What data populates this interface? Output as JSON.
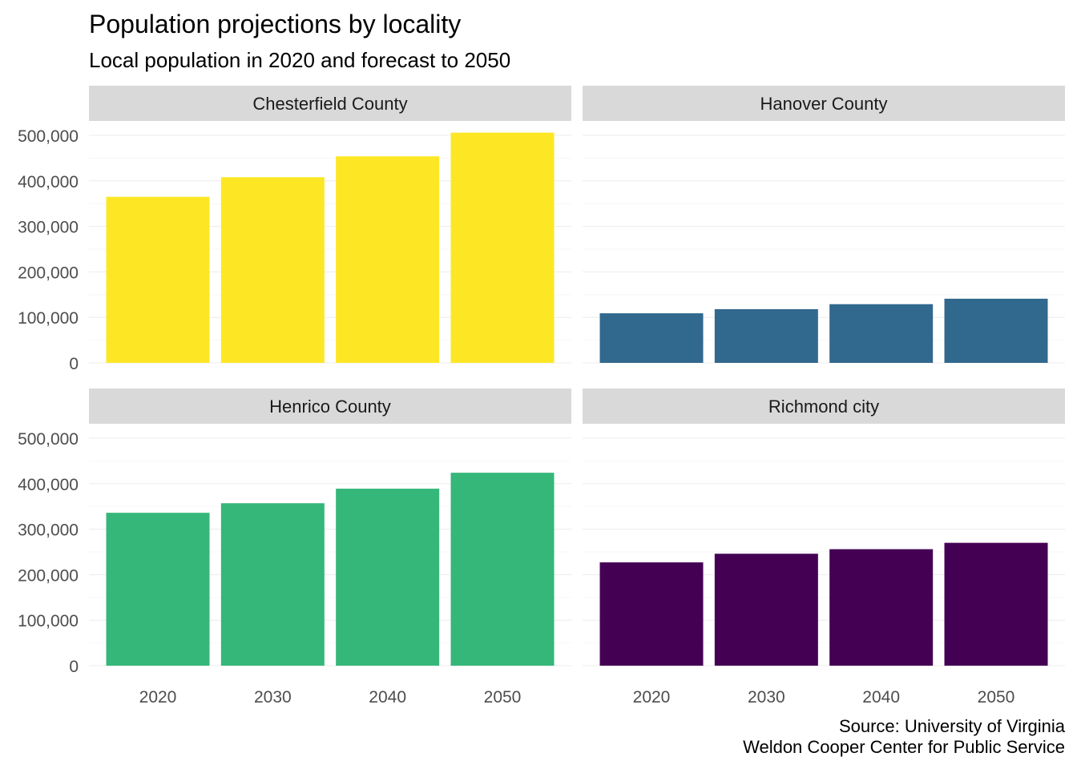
{
  "title": "Population projections by locality",
  "subtitle": "Local population in 2020 and forecast to 2050",
  "caption_lines": [
    "Source: University of Virginia",
    "Weldon Cooper Center for Public Service"
  ],
  "chart_data": {
    "type": "bar",
    "facets": true,
    "categories": [
      "2020",
      "2030",
      "2040",
      "2050"
    ],
    "ylim": [
      0,
      500000
    ],
    "yticks": [
      0,
      100000,
      200000,
      300000,
      400000,
      500000
    ],
    "ytick_labels": [
      "0",
      "100,000",
      "200,000",
      "300,000",
      "400,000",
      "500,000"
    ],
    "grid": true,
    "panels": [
      {
        "name": "Chesterfield County",
        "color": "#FDE725",
        "values": [
          365000,
          408000,
          454000,
          506000
        ]
      },
      {
        "name": "Hanover County",
        "color": "#31688E",
        "values": [
          109000,
          118000,
          129000,
          141000
        ]
      },
      {
        "name": "Henrico County",
        "color": "#35B779",
        "values": [
          336000,
          357000,
          389000,
          424000
        ]
      },
      {
        "name": "Richmond city",
        "color": "#440154",
        "values": [
          227000,
          246000,
          256000,
          270000
        ]
      }
    ]
  }
}
